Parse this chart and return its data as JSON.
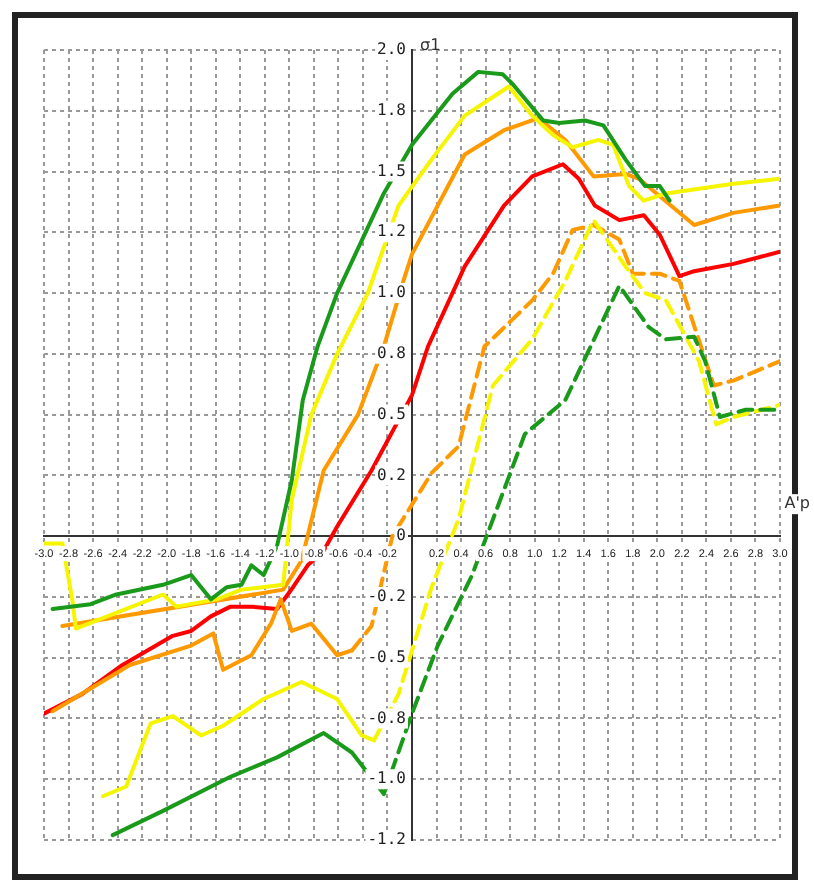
{
  "chart_data": {
    "type": "line",
    "ylabel": "σ1",
    "xlabel": "A'p",
    "grid": true,
    "legend": false,
    "marker": "none",
    "xlim": [
      -3,
      3
    ],
    "xticks": [
      {
        "value": -3,
        "label": "-3.0"
      },
      -2.8,
      -2.6,
      -2.4,
      -2.2,
      {
        "value": -2,
        "label": "-2.0"
      },
      -1.8,
      -1.6,
      -1.4,
      -1.2,
      {
        "value": -1,
        "label": "-1.0"
      },
      -0.8,
      -0.6,
      -0.4,
      -0.2,
      {
        "value": 0,
        "label": null
      },
      0.2,
      0.4,
      0.6,
      0.8,
      {
        "value": 1,
        "label": "1.0"
      },
      1.2,
      1.4,
      1.6,
      1.8,
      {
        "value": 2,
        "label": "2.0"
      },
      2.2,
      2.4,
      2.6,
      2.8,
      {
        "value": 3,
        "label": "3.0"
      }
    ],
    "ylim": [
      -1.25,
      2
    ],
    "yticks": [
      {
        "value": 2,
        "label": "2.0"
      },
      {
        "value": 1.75,
        "label": "1.8"
      },
      1.5,
      {
        "value": 1.25,
        "label": "1.2"
      },
      {
        "value": 1,
        "label": "1.0"
      },
      {
        "value": 0.75,
        "label": "0.8"
      },
      0.5,
      {
        "value": 0.25,
        "label": "0.2"
      },
      0,
      {
        "value": -0.25,
        "label": "-0.2"
      },
      -0.5,
      {
        "value": -0.75,
        "label": "-0.8"
      },
      {
        "value": -1,
        "label": "-1.0"
      },
      {
        "value": -1.25,
        "label": "-1.2"
      }
    ],
    "series": [
      {
        "color": "#1a9a1a",
        "line_style": "solid",
        "x": [
          -2.93,
          -2.62,
          -2.41,
          -2.03,
          -1.8,
          -1.64,
          -1.51,
          -1.39,
          -1.31,
          -1.21,
          -1.1,
          -0.98,
          -0.89,
          -0.77,
          -0.61,
          -0.23,
          0,
          0.33,
          0.54,
          0.74,
          0.82,
          1.07,
          1.2,
          1.41,
          1.56,
          1.74,
          1.9,
          2.02,
          2.1
        ],
        "values": [
          -0.3,
          -0.28,
          -0.24,
          -0.2,
          -0.16,
          -0.26,
          -0.21,
          -0.2,
          -0.12,
          -0.16,
          -0.04,
          0.23,
          0.56,
          0.78,
          1,
          1.41,
          1.61,
          1.82,
          1.91,
          1.9,
          1.86,
          1.71,
          1.7,
          1.71,
          1.69,
          1.55,
          1.44,
          1.44,
          1.38
        ]
      },
      {
        "color": "#1a9a1a",
        "line_style": "solid",
        "x": [
          -2.44,
          -2.03,
          -1.48,
          -1.1,
          -0.72,
          -0.49,
          -0.23
        ],
        "values": [
          -1.23,
          -1.13,
          -0.99,
          -0.91,
          -0.81,
          -0.89,
          -1.06
        ]
      },
      {
        "color": "#1a9a1a",
        "line_style": "dashed",
        "x": [
          -0.23,
          0,
          0.21,
          0.49,
          0.92,
          1.25,
          1.69,
          1.93,
          2.07,
          2.3,
          2.39,
          2.51,
          2.72,
          3
        ],
        "values": [
          -1.06,
          -0.73,
          -0.45,
          -0.16,
          0.42,
          0.56,
          1.03,
          0.86,
          0.81,
          0.82,
          0.72,
          0.49,
          0.52,
          0.52
        ]
      },
      {
        "color": "#f5f500",
        "line_style": "solid",
        "x": [
          -3,
          -2.85,
          -2.77,
          -2.74,
          -2.03,
          -1.92,
          -1.59,
          -1.39,
          -1.05,
          -0.98,
          -0.82,
          -0.61,
          -0.36,
          -0.11,
          0.16,
          0.43,
          0.79,
          0.98,
          1.15,
          1.31,
          1.52,
          1.64,
          1.77,
          1.89,
          2.07,
          2.62,
          3
        ],
        "values": [
          -0.03,
          -0.03,
          -0.26,
          -0.38,
          -0.24,
          -0.29,
          -0.26,
          -0.22,
          -0.2,
          0.15,
          0.5,
          0.75,
          1,
          1.36,
          1.55,
          1.73,
          1.85,
          1.73,
          1.65,
          1.6,
          1.63,
          1.61,
          1.44,
          1.38,
          1.41,
          1.45,
          1.47
        ]
      },
      {
        "color": "#f5f500",
        "line_style": "solid",
        "x": [
          -2.52,
          -2.33,
          -2.13,
          -1.95,
          -1.72,
          -1.54,
          -1.21,
          -0.9,
          -0.61,
          -0.41,
          -0.31
        ],
        "values": [
          -1.07,
          -1.03,
          -0.77,
          -0.74,
          -0.82,
          -0.78,
          -0.67,
          -0.6,
          -0.67,
          -0.82,
          -0.84
        ]
      },
      {
        "color": "#f5f500",
        "line_style": "dashed",
        "x": [
          -0.31,
          -0.11,
          0.16,
          0.38,
          0.66,
          0.98,
          1.25,
          1.48,
          1.74,
          1.9,
          2.07,
          2.34,
          2.48,
          2.62,
          3
        ],
        "values": [
          -0.84,
          -0.65,
          -0.21,
          0.07,
          0.62,
          0.81,
          1.05,
          1.3,
          1.11,
          1,
          0.97,
          0.72,
          0.46,
          0.49,
          0.54
        ]
      },
      {
        "color": "#ff9900",
        "line_style": "solid",
        "x": [
          -2.85,
          -1.05,
          -0.9,
          -0.72,
          -0.44,
          -0.23,
          -0.07,
          0,
          0.43,
          0.75,
          1.03,
          1.25,
          1.48,
          1.74,
          1.85,
          2.3,
          2.62,
          3
        ],
        "values": [
          -0.37,
          -0.22,
          -0.1,
          0.27,
          0.5,
          0.78,
          1.05,
          1.16,
          1.57,
          1.67,
          1.72,
          1.63,
          1.48,
          1.49,
          1.47,
          1.28,
          1.33,
          1.36
        ]
      },
      {
        "color": "#ff9900",
        "line_style": "solid",
        "x": [
          -2.93,
          -2.3,
          -1.8,
          -1.62,
          -1.54,
          -1.31,
          -1.15,
          -1.07,
          -0.98,
          -0.82,
          -0.61,
          -0.49
        ],
        "values": [
          -0.72,
          -0.53,
          -0.45,
          -0.4,
          -0.55,
          -0.49,
          -0.36,
          -0.26,
          -0.39,
          -0.36,
          -0.49,
          -0.47
        ]
      },
      {
        "color": "#ff9900",
        "line_style": "dashed",
        "x": [
          -0.49,
          -0.33,
          -0.16,
          0.16,
          0.38,
          0.59,
          0.98,
          1.15,
          1.31,
          1.48,
          1.69,
          1.8,
          2.02,
          2.18,
          2.46,
          2.62,
          3
        ],
        "values": [
          -0.47,
          -0.37,
          0,
          0.26,
          0.37,
          0.78,
          0.97,
          1.08,
          1.26,
          1.28,
          1.22,
          1.08,
          1.08,
          1.05,
          0.62,
          0.64,
          0.72
        ]
      },
      {
        "color": "#ff0000",
        "line_style": "solid",
        "x": [
          -3,
          -2.69,
          -2.36,
          -1.95,
          -1.8,
          -1.64,
          -1.48,
          -1.31,
          -1.1,
          -0.97,
          -0.85,
          -0.72,
          -0.61,
          -0.33,
          0,
          0.13,
          0.43,
          0.75,
          0.98,
          1.23,
          1.36,
          1.49,
          1.69,
          1.89,
          2.02,
          2.18,
          2.3,
          2.62,
          3
        ],
        "values": [
          -0.73,
          -0.65,
          -0.53,
          -0.41,
          -0.39,
          -0.33,
          -0.29,
          -0.29,
          -0.3,
          -0.21,
          -0.12,
          -0.06,
          0.04,
          0.27,
          0.58,
          0.78,
          1.11,
          1.36,
          1.48,
          1.53,
          1.47,
          1.36,
          1.3,
          1.32,
          1.24,
          1.07,
          1.09,
          1.12,
          1.17
        ]
      }
    ]
  }
}
